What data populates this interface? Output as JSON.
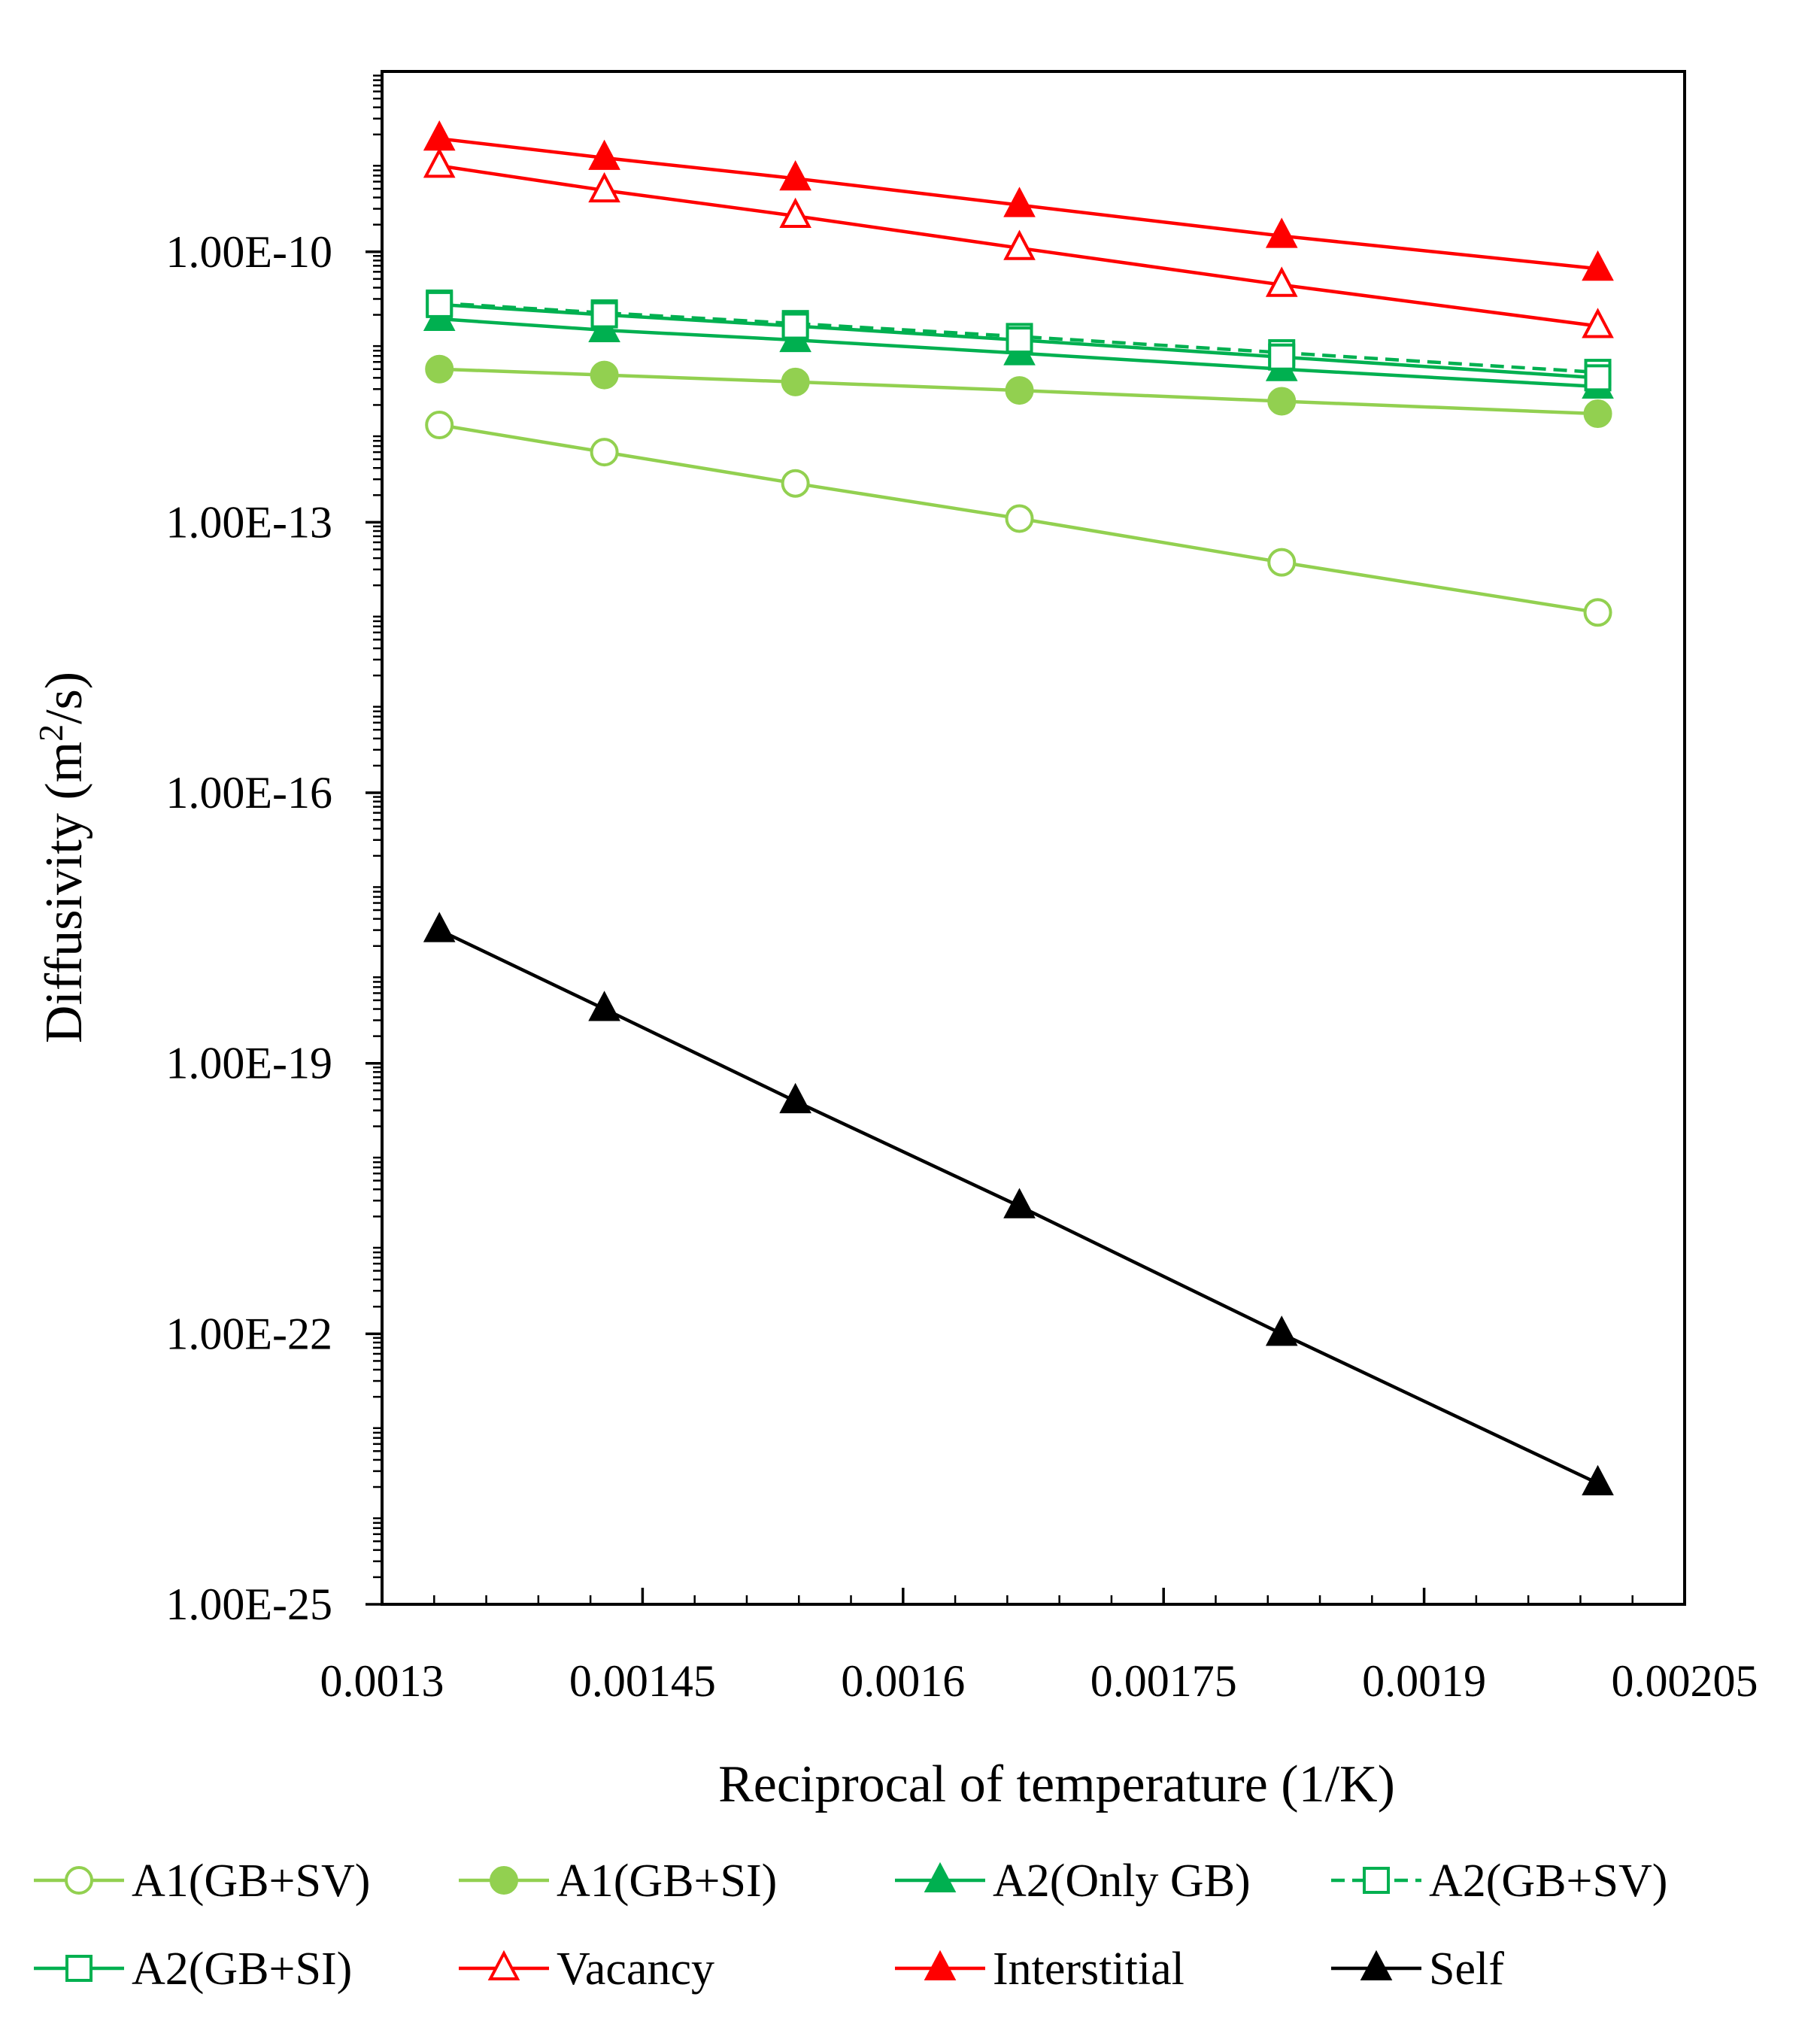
{
  "chart_data": {
    "type": "scatter",
    "xlabel": "Reciprocal of temperature (1/K)",
    "ylabel_main": "Diffusivity (m",
    "ylabel_sup": "2",
    "ylabel_tail": "/s)",
    "xlim": [
      0.0013,
      0.00205
    ],
    "x_ticks": [
      0.0013,
      0.00145,
      0.0016,
      0.00175,
      0.0019,
      0.00205
    ],
    "x_tick_labels": [
      "0.0013",
      "0.00145",
      "0.0016",
      "0.00175",
      "0.0019",
      "0.00205"
    ],
    "y_scale": "log",
    "ylim": [
      1e-25,
      1e-08
    ],
    "y_ticks": [
      1e-25,
      1e-22,
      1e-19,
      1e-16,
      1e-13,
      1e-10
    ],
    "y_tick_labels": [
      "1.00E-25",
      "1.00E-22",
      "1.00E-19",
      "1.00E-16",
      "1.00E-13",
      "1.00E-10"
    ],
    "grid": false,
    "legend_position": "bottom",
    "x": [
      0.001333,
      0.001428,
      0.001538,
      0.001667,
      0.001818,
      0.002
    ],
    "series": [
      {
        "name": "A1(GB+SV)",
        "color": "#92D050",
        "marker": "circle-open",
        "dash": false,
        "values": [
          1.2e-12,
          6e-13,
          2.7e-13,
          1.1e-13,
          3.6e-14,
          1e-14
        ]
      },
      {
        "name": "A1(GB+SI)",
        "color": "#92D050",
        "marker": "circle-filled",
        "dash": false,
        "values": [
          5e-12,
          4.3e-12,
          3.6e-12,
          2.9e-12,
          2.2e-12,
          1.6e-12
        ]
      },
      {
        "name": "A2(Only GB)",
        "color": "#00B050",
        "marker": "triangle-filled",
        "dash": false,
        "values": [
          1.8e-11,
          1.35e-11,
          1.05e-11,
          7.5e-12,
          5e-12,
          3.2e-12
        ]
      },
      {
        "name": "A2(GB+SV)",
        "color": "#00B050",
        "marker": "square-open",
        "dash": true,
        "values": [
          2.7e-11,
          2.1e-11,
          1.6e-11,
          1.15e-11,
          7.6e-12,
          4.6e-12
        ]
      },
      {
        "name": "A2(GB+SI)",
        "color": "#00B050",
        "marker": "square-open",
        "dash": false,
        "values": [
          2.6e-11,
          2e-11,
          1.5e-11,
          1.05e-11,
          6.8e-12,
          4e-12
        ]
      },
      {
        "name": "Vacancy",
        "color": "#FF0000",
        "marker": "triangle-open",
        "dash": false,
        "values": [
          9e-10,
          4.8e-10,
          2.5e-10,
          1.1e-10,
          4.3e-11,
          1.5e-11
        ]
      },
      {
        "name": "Interstitial",
        "color": "#FF0000",
        "marker": "triangle-filled",
        "dash": false,
        "values": [
          1.8e-09,
          1.1e-09,
          6.5e-10,
          3.3e-10,
          1.5e-10,
          6.5e-11
        ]
      },
      {
        "name": "Self",
        "color": "#000000",
        "marker": "triangle-filled",
        "dash": false,
        "values": [
          3e-18,
          4e-19,
          3.8e-20,
          2.6e-21,
          1e-22,
          2.2e-24
        ]
      }
    ]
  }
}
